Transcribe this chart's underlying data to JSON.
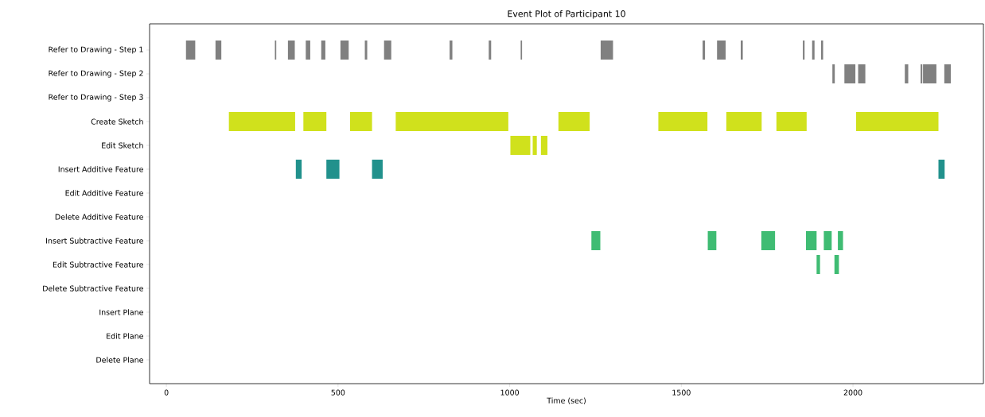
{
  "chart_data": {
    "type": "bar",
    "orientation": "horizontal",
    "title": "Event Plot of Participant 10",
    "xlabel": "Time (sec)",
    "categories": [
      "Refer to Drawing - Step 1",
      "Refer to Drawing - Step 2",
      "Refer to Drawing - Step 3",
      "Create Sketch",
      "Edit Sketch",
      "Insert Additive Feature",
      "Edit Additive Feature",
      "Delete Additive Feature",
      "Insert Subtractive Feature",
      "Edit Subtractive Feature",
      "Delete Subtractive Feature",
      "Insert Plane",
      "Edit Plane",
      "Delete Plane"
    ],
    "xlim": [
      -49,
      2380
    ],
    "xticks": [
      0,
      500,
      1000,
      1500,
      2000
    ],
    "series": [
      {
        "values": [
          27,
          7,
          null,
          193,
          58,
          17,
          null,
          null,
          26,
          10,
          null,
          null,
          null,
          null
        ],
        "base": [
          57,
          1940,
          null,
          182,
          1002,
          377,
          null,
          null,
          1238,
          1894,
          null,
          null,
          null,
          null
        ],
        "colors": [
          "#808080",
          "#808080",
          "#808080",
          "#d0e11c",
          "#d0e11c",
          "#21918c",
          "#21918c",
          "#21918c",
          "#3fbc73",
          "#3fbc73",
          "#3fbc73",
          "#808080",
          "#808080",
          "#808080"
        ]
      },
      {
        "values": [
          17,
          32,
          null,
          67,
          12,
          38,
          null,
          null,
          25,
          13,
          null,
          null,
          null,
          null
        ],
        "base": [
          143,
          1975,
          null,
          399,
          1067,
          466,
          null,
          null,
          1577,
          1946,
          null,
          null,
          null,
          null
        ],
        "colors": [
          "#808080",
          "#808080",
          "#808080",
          "#d0e11c",
          "#d0e11c",
          "#21918c",
          "#21918c",
          "#21918c",
          "#3fbc73",
          "#3fbc73",
          "#3fbc73",
          "#808080",
          "#808080",
          "#808080"
        ]
      },
      {
        "values": [
          4,
          21,
          null,
          64,
          19,
          31,
          null,
          null,
          40,
          null,
          null,
          null,
          null,
          null
        ],
        "base": [
          316,
          2015,
          null,
          535,
          1091,
          599,
          null,
          null,
          1733,
          null,
          null,
          null,
          null,
          null
        ],
        "colors": [
          "#808080",
          "#808080",
          "#808080",
          "#d0e11c",
          "#d0e11c",
          "#21918c",
          "#21918c",
          "#21918c",
          "#3fbc73",
          "#3fbc73",
          "#3fbc73",
          "#808080",
          "#808080",
          "#808080"
        ]
      },
      {
        "values": [
          20,
          10,
          null,
          328,
          null,
          18,
          null,
          null,
          31,
          null,
          null,
          null,
          null,
          null
        ],
        "base": [
          354,
          2151,
          null,
          668,
          null,
          2249,
          null,
          null,
          1863,
          null,
          null,
          null,
          null,
          null
        ],
        "colors": [
          "#808080",
          "#808080",
          "#808080",
          "#d0e11c",
          "#d0e11c",
          "#21918c",
          "#21918c",
          "#21918c",
          "#3fbc73",
          "#3fbc73",
          "#3fbc73",
          "#808080",
          "#808080",
          "#808080"
        ]
      },
      {
        "values": [
          13,
          5,
          null,
          91,
          null,
          null,
          null,
          null,
          23,
          null,
          null,
          null,
          null,
          null
        ],
        "base": [
          406,
          2197,
          null,
          1142,
          null,
          null,
          null,
          null,
          1915,
          null,
          null,
          null,
          null,
          null
        ],
        "colors": [
          "#808080",
          "#808080",
          "#808080",
          "#d0e11c",
          "#d0e11c",
          "#21918c",
          "#21918c",
          "#21918c",
          "#3fbc73",
          "#3fbc73",
          "#3fbc73",
          "#808080",
          "#808080",
          "#808080"
        ]
      },
      {
        "values": [
          12,
          39,
          null,
          143,
          null,
          null,
          null,
          null,
          15,
          null,
          null,
          null,
          null,
          null
        ],
        "base": [
          451,
          2204,
          null,
          1433,
          null,
          null,
          null,
          null,
          1956,
          null,
          null,
          null,
          null,
          null
        ],
        "colors": [
          "#808080",
          "#808080",
          "#808080",
          "#d0e11c",
          "#d0e11c",
          "#21918c",
          "#21918c",
          "#21918c",
          "#3fbc73",
          "#3fbc73",
          "#3fbc73",
          "#808080",
          "#808080",
          "#808080"
        ]
      },
      {
        "values": [
          24,
          19,
          null,
          103,
          null,
          null,
          null,
          null,
          null,
          null,
          null,
          null,
          null,
          null
        ],
        "base": [
          507,
          2266,
          null,
          1631,
          null,
          null,
          null,
          null,
          null,
          null,
          null,
          null,
          null,
          null
        ],
        "colors": [
          "#808080",
          "#808080",
          "#808080",
          "#d0e11c",
          "#d0e11c",
          "#21918c",
          "#21918c",
          "#21918c",
          "#3fbc73",
          "#3fbc73",
          "#3fbc73",
          "#808080",
          "#808080",
          "#808080"
        ]
      },
      {
        "values": [
          7,
          null,
          null,
          88,
          null,
          null,
          null,
          null,
          null,
          null,
          null,
          null,
          null,
          null
        ],
        "base": [
          578,
          null,
          null,
          1777,
          null,
          null,
          null,
          null,
          null,
          null,
          null,
          null,
          null,
          null
        ],
        "colors": [
          "#808080",
          "#808080",
          "#808080",
          "#d0e11c",
          "#d0e11c",
          "#21918c",
          "#21918c",
          "#21918c",
          "#3fbc73",
          "#3fbc73",
          "#3fbc73",
          "#808080",
          "#808080",
          "#808080"
        ]
      },
      {
        "values": [
          21,
          null,
          null,
          240,
          null,
          null,
          null,
          null,
          null,
          null,
          null,
          null,
          null,
          null
        ],
        "base": [
          634,
          null,
          null,
          2009,
          null,
          null,
          null,
          null,
          null,
          null,
          null,
          null,
          null,
          null
        ],
        "colors": [
          "#808080",
          "#808080",
          "#808080",
          "#d0e11c",
          "#d0e11c",
          "#21918c",
          "#21918c",
          "#21918c",
          "#3fbc73",
          "#3fbc73",
          "#3fbc73",
          "#808080",
          "#808080",
          "#808080"
        ]
      },
      {
        "values": [
          8,
          null,
          null,
          null,
          null,
          null,
          null,
          null,
          null,
          null,
          null,
          null,
          null,
          null
        ],
        "base": [
          825,
          null,
          null,
          null,
          null,
          null,
          null,
          null,
          null,
          null,
          null,
          null,
          null,
          null
        ],
        "colors": [
          "#808080",
          "#808080",
          "#808080",
          "#d0e11c",
          "#d0e11c",
          "#21918c",
          "#21918c",
          "#21918c",
          "#3fbc73",
          "#3fbc73",
          "#3fbc73",
          "#808080",
          "#808080",
          "#808080"
        ]
      },
      {
        "values": [
          7,
          null,
          null,
          null,
          null,
          null,
          null,
          null,
          null,
          null,
          null,
          null,
          null,
          null
        ],
        "base": [
          939,
          null,
          null,
          null,
          null,
          null,
          null,
          null,
          null,
          null,
          null,
          null,
          null,
          null
        ],
        "colors": [
          "#808080",
          "#808080",
          "#808080",
          "#d0e11c",
          "#d0e11c",
          "#21918c",
          "#21918c",
          "#21918c",
          "#3fbc73",
          "#3fbc73",
          "#3fbc73",
          "#808080",
          "#808080",
          "#808080"
        ]
      },
      {
        "values": [
          4,
          null,
          null,
          null,
          null,
          null,
          null,
          null,
          null,
          null,
          null,
          null,
          null,
          null
        ],
        "base": [
          1032,
          null,
          null,
          null,
          null,
          null,
          null,
          null,
          null,
          null,
          null,
          null,
          null,
          null
        ],
        "colors": [
          "#808080",
          "#808080",
          "#808080",
          "#d0e11c",
          "#d0e11c",
          "#21918c",
          "#21918c",
          "#21918c",
          "#3fbc73",
          "#3fbc73",
          "#3fbc73",
          "#808080",
          "#808080",
          "#808080"
        ]
      },
      {
        "values": [
          36,
          null,
          null,
          null,
          null,
          null,
          null,
          null,
          null,
          null,
          null,
          null,
          null,
          null
        ],
        "base": [
          1265,
          null,
          null,
          null,
          null,
          null,
          null,
          null,
          null,
          null,
          null,
          null,
          null,
          null
        ],
        "colors": [
          "#808080",
          "#808080",
          "#808080",
          "#d0e11c",
          "#d0e11c",
          "#21918c",
          "#21918c",
          "#21918c",
          "#3fbc73",
          "#3fbc73",
          "#3fbc73",
          "#808080",
          "#808080",
          "#808080"
        ]
      },
      {
        "values": [
          7,
          null,
          null,
          null,
          null,
          null,
          null,
          null,
          null,
          null,
          null,
          null,
          null,
          null
        ],
        "base": [
          1562,
          null,
          null,
          null,
          null,
          null,
          null,
          null,
          null,
          null,
          null,
          null,
          null,
          null
        ],
        "colors": [
          "#808080",
          "#808080",
          "#808080",
          "#d0e11c",
          "#d0e11c",
          "#21918c",
          "#21918c",
          "#21918c",
          "#3fbc73",
          "#3fbc73",
          "#3fbc73",
          "#808080",
          "#808080",
          "#808080"
        ]
      },
      {
        "values": [
          25,
          null,
          null,
          null,
          null,
          null,
          null,
          null,
          null,
          null,
          null,
          null,
          null,
          null
        ],
        "base": [
          1604,
          null,
          null,
          null,
          null,
          null,
          null,
          null,
          null,
          null,
          null,
          null,
          null,
          null
        ],
        "colors": [
          "#808080",
          "#808080",
          "#808080",
          "#d0e11c",
          "#d0e11c",
          "#21918c",
          "#21918c",
          "#21918c",
          "#3fbc73",
          "#3fbc73",
          "#3fbc73",
          "#808080",
          "#808080",
          "#808080"
        ]
      },
      {
        "values": [
          6,
          null,
          null,
          null,
          null,
          null,
          null,
          null,
          null,
          null,
          null,
          null,
          null,
          null
        ],
        "base": [
          1673,
          null,
          null,
          null,
          null,
          null,
          null,
          null,
          null,
          null,
          null,
          null,
          null,
          null
        ],
        "colors": [
          "#808080",
          "#808080",
          "#808080",
          "#d0e11c",
          "#d0e11c",
          "#21918c",
          "#21918c",
          "#21918c",
          "#3fbc73",
          "#3fbc73",
          "#3fbc73",
          "#808080",
          "#808080",
          "#808080"
        ]
      },
      {
        "values": [
          5,
          null,
          null,
          null,
          null,
          null,
          null,
          null,
          null,
          null,
          null,
          null,
          null,
          null
        ],
        "base": [
          1854,
          null,
          null,
          null,
          null,
          null,
          null,
          null,
          null,
          null,
          null,
          null,
          null,
          null
        ],
        "colors": [
          "#808080",
          "#808080",
          "#808080",
          "#d0e11c",
          "#d0e11c",
          "#21918c",
          "#21918c",
          "#21918c",
          "#3fbc73",
          "#3fbc73",
          "#3fbc73",
          "#808080",
          "#808080",
          "#808080"
        ]
      },
      {
        "values": [
          7,
          null,
          null,
          null,
          null,
          null,
          null,
          null,
          null,
          null,
          null,
          null,
          null,
          null
        ],
        "base": [
          1881,
          null,
          null,
          null,
          null,
          null,
          null,
          null,
          null,
          null,
          null,
          null,
          null,
          null
        ],
        "colors": [
          "#808080",
          "#808080",
          "#808080",
          "#d0e11c",
          "#d0e11c",
          "#21918c",
          "#21918c",
          "#21918c",
          "#3fbc73",
          "#3fbc73",
          "#3fbc73",
          "#808080",
          "#808080",
          "#808080"
        ]
      },
      {
        "values": [
          6,
          null,
          null,
          null,
          null,
          null,
          null,
          null,
          null,
          null,
          null,
          null,
          null,
          null
        ],
        "base": [
          1907,
          null,
          null,
          null,
          null,
          null,
          null,
          null,
          null,
          null,
          null,
          null,
          null,
          null
        ],
        "colors": [
          "#808080",
          "#808080",
          "#808080",
          "#d0e11c",
          "#d0e11c",
          "#21918c",
          "#21918c",
          "#21918c",
          "#3fbc73",
          "#3fbc73",
          "#3fbc73",
          "#808080",
          "#808080",
          "#808080"
        ]
      }
    ]
  }
}
